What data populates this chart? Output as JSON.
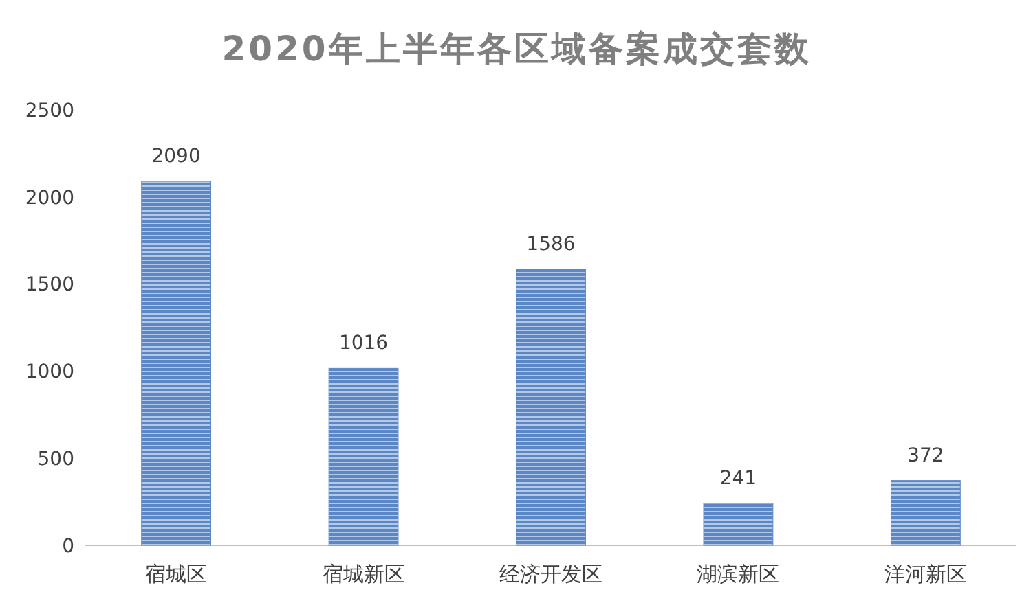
{
  "chart_data": {
    "type": "bar",
    "title": "2020年上半年各区域备案成交套数",
    "categories": [
      "宿城区",
      "宿城新区",
      "经济开发区",
      "湖滨新区",
      "洋河新区"
    ],
    "values": [
      2090,
      1016,
      1586,
      241,
      372
    ],
    "color": "#5b87c6",
    "ylim": [
      0,
      2500
    ],
    "yticks": [
      0,
      500,
      1000,
      1500,
      2000,
      2500
    ],
    "data_labels": true
  }
}
